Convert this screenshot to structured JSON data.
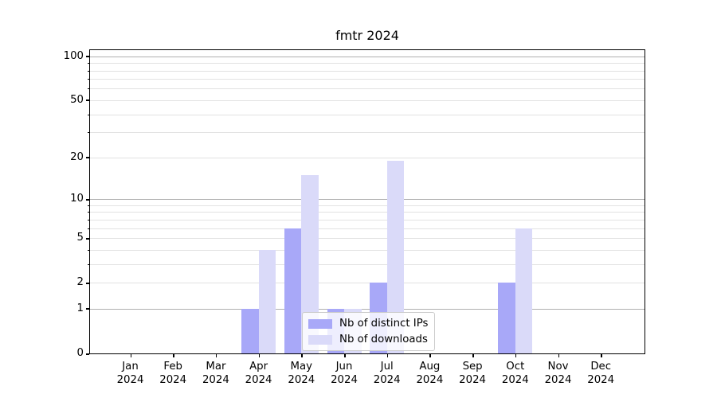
{
  "chart_data": {
    "type": "bar",
    "title": "fmtr 2024",
    "categories": [
      "Jan",
      "Feb",
      "Mar",
      "Apr",
      "May",
      "Jun",
      "Jul",
      "Aug",
      "Sep",
      "Oct",
      "Nov",
      "Dec"
    ],
    "year_label": "2024",
    "series": [
      {
        "name": "Nb of distinct IPs",
        "color": "#a8a8f8",
        "values": [
          0,
          0,
          0,
          1,
          6,
          1,
          2,
          0,
          0,
          2,
          0,
          0
        ]
      },
      {
        "name": "Nb of downloads",
        "color": "#dadaf9",
        "values": [
          0,
          0,
          0,
          4,
          15,
          1,
          19,
          0,
          0,
          6,
          0,
          0
        ]
      }
    ],
    "xlabel": "",
    "ylabel": "",
    "yscale": "log1p",
    "ylim": [
      0,
      110
    ],
    "yticks": [
      0,
      1,
      2,
      5,
      10,
      20,
      50,
      100
    ],
    "grid_major": [
      1,
      10,
      100
    ],
    "grid_minor": [
      2,
      3,
      4,
      5,
      6,
      7,
      8,
      9,
      20,
      30,
      40,
      50,
      60,
      70,
      80,
      90
    ],
    "grid_major_color": "#b0b0b0",
    "grid_minor_color": "#e2e2e2",
    "grid": "on",
    "legend_position": "lower center",
    "bar_layout": "grouped"
  }
}
